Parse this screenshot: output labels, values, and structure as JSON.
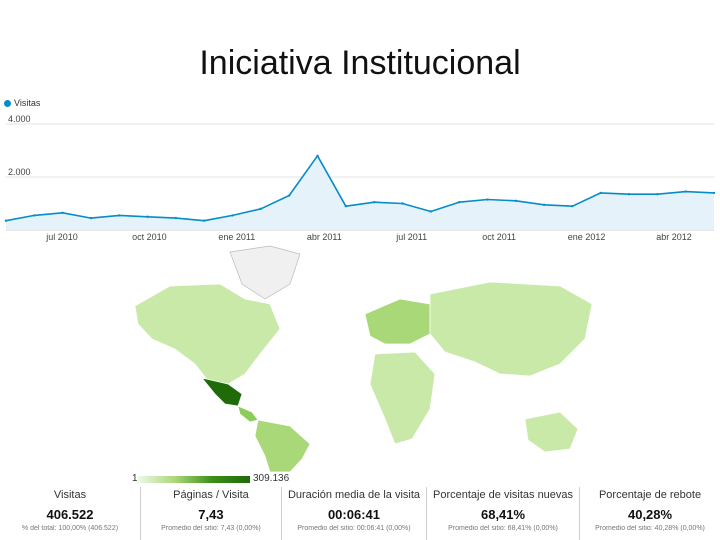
{
  "slide": {
    "title": "Iniciativa Institucional"
  },
  "chart_data": {
    "type": "line",
    "series": [
      {
        "name": "Visitas",
        "color": "#058dc7"
      }
    ],
    "yticks": [
      "4.000",
      "2.000"
    ],
    "ylim": [
      0,
      4000
    ],
    "xticks": [
      "jul 2010",
      "oct 2010",
      "ene 2011",
      "abr 2011",
      "jul 2011",
      "oct 2011",
      "ene 2012",
      "abr 2012"
    ],
    "x": [
      "2010-05",
      "2010-06",
      "2010-07",
      "2010-08",
      "2010-09",
      "2010-10",
      "2010-11",
      "2010-12",
      "2011-01",
      "2011-02",
      "2011-03",
      "2011-04",
      "2011-05",
      "2011-06",
      "2011-07",
      "2011-08",
      "2011-09",
      "2011-10",
      "2011-11",
      "2011-12",
      "2012-01",
      "2012-02",
      "2012-03",
      "2012-04",
      "2012-05",
      "2012-06"
    ],
    "values": [
      350,
      550,
      650,
      450,
      550,
      500,
      450,
      350,
      550,
      800,
      1300,
      2800,
      900,
      1050,
      1000,
      700,
      1050,
      1150,
      1100,
      950,
      900,
      1400,
      1350,
      1350,
      1450,
      1400
    ],
    "grid": true
  },
  "map": {
    "legend_min": "1",
    "legend_max": "309.136",
    "colors": {
      "highest": "#1f6b0a",
      "high": "#3a8f16",
      "mid": "#8ccc5a",
      "low": "#c9e9a8",
      "none": "#f0f0f0"
    }
  },
  "metrics": [
    {
      "label": "Visitas",
      "value": "406.522",
      "sub": "% del total: 100,00% (406.522)"
    },
    {
      "label": "Páginas / Visita",
      "value": "7,43",
      "sub": "Promedio del sitio: 7,43 (0,00%)"
    },
    {
      "label": "Duración media de la visita",
      "value": "00:06:41",
      "sub": "Promedio del sitio: 00:06:41 (0,00%)"
    },
    {
      "label": "Porcentaje de visitas nuevas",
      "value": "68,41%",
      "sub": "Promedio del sitio: 68,41% (0,00%)"
    },
    {
      "label": "Porcentaje de rebote",
      "value": "40,28%",
      "sub": "Promedio del sitio: 40,28% (0,00%)"
    }
  ]
}
